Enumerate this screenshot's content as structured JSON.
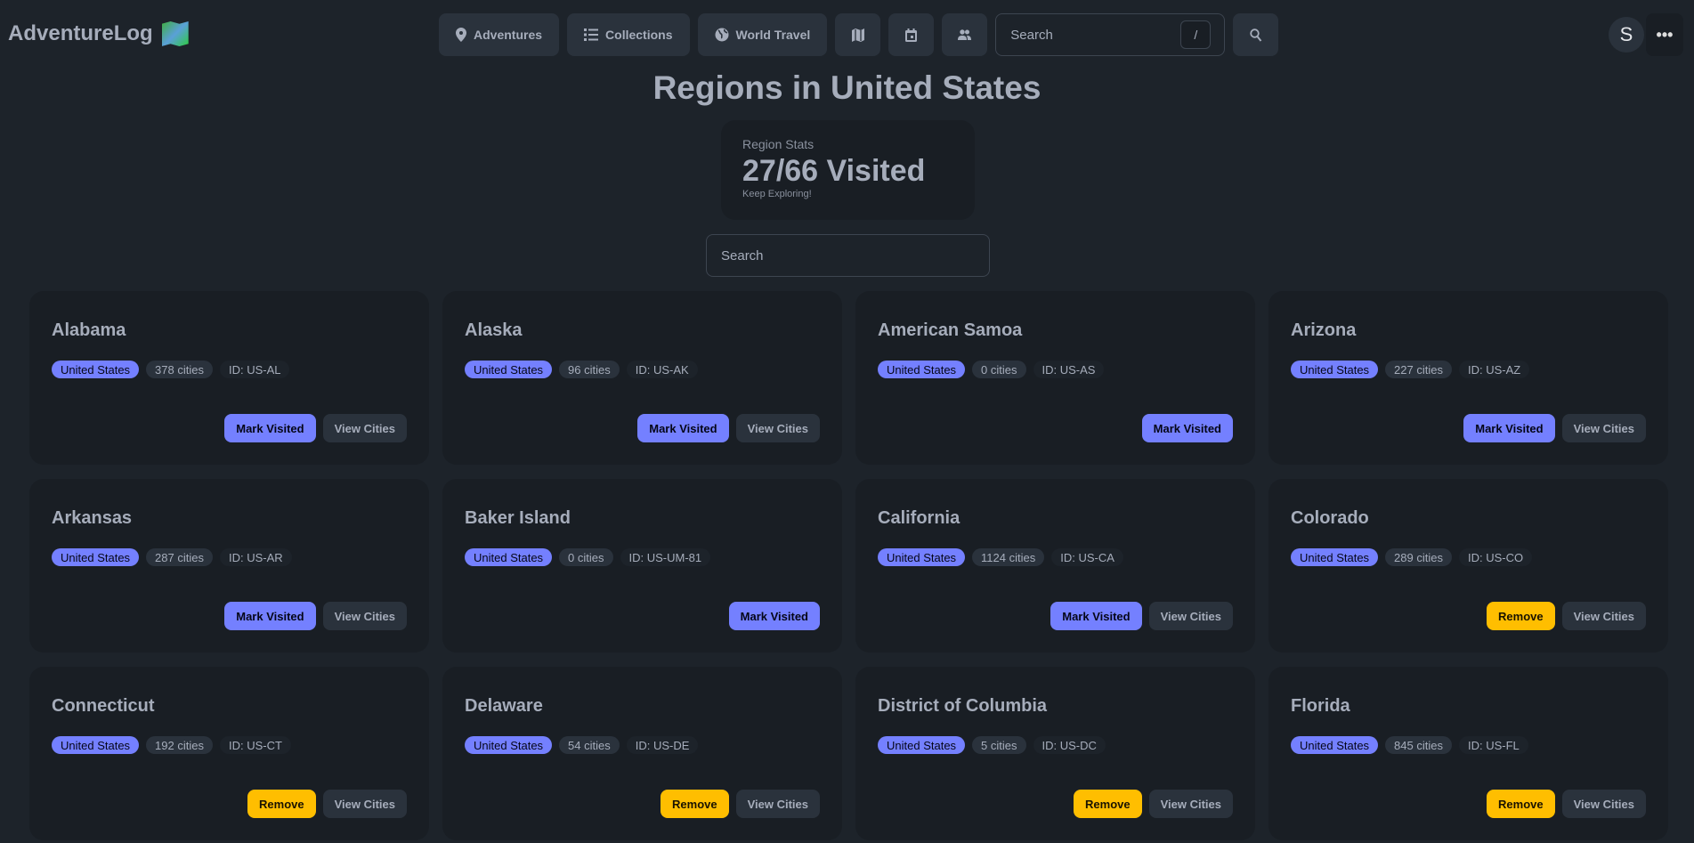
{
  "app": {
    "name": "AdventureLog"
  },
  "nav": {
    "adventures": "Adventures",
    "collections": "Collections",
    "world_travel": "World Travel",
    "search_placeholder": "Search",
    "search_shortcut": "/",
    "avatar_initial": "S",
    "more": "•••"
  },
  "page": {
    "title": "Regions in United States",
    "stats_title": "Region Stats",
    "stats_value": "27/66 Visited",
    "stats_desc": "Keep Exploring!",
    "search_placeholder": "Search"
  },
  "colors": {
    "primary": "#7480ff",
    "warning": "#ffbe00",
    "background": "#1d232a",
    "card": "#191e24"
  },
  "labels": {
    "mark_visited": "Mark Visited",
    "remove": "Remove",
    "view_cities": "View Cities"
  },
  "regions": [
    {
      "name": "Alabama",
      "country": "United States",
      "cities": "378 cities",
      "id": "ID: US-AL",
      "visited": false,
      "has_cities": true
    },
    {
      "name": "Alaska",
      "country": "United States",
      "cities": "96 cities",
      "id": "ID: US-AK",
      "visited": false,
      "has_cities": true
    },
    {
      "name": "American Samoa",
      "country": "United States",
      "cities": "0 cities",
      "id": "ID: US-AS",
      "visited": false,
      "has_cities": false
    },
    {
      "name": "Arizona",
      "country": "United States",
      "cities": "227 cities",
      "id": "ID: US-AZ",
      "visited": false,
      "has_cities": true
    },
    {
      "name": "Arkansas",
      "country": "United States",
      "cities": "287 cities",
      "id": "ID: US-AR",
      "visited": false,
      "has_cities": true
    },
    {
      "name": "Baker Island",
      "country": "United States",
      "cities": "0 cities",
      "id": "ID: US-UM-81",
      "visited": false,
      "has_cities": false
    },
    {
      "name": "California",
      "country": "United States",
      "cities": "1124 cities",
      "id": "ID: US-CA",
      "visited": false,
      "has_cities": true
    },
    {
      "name": "Colorado",
      "country": "United States",
      "cities": "289 cities",
      "id": "ID: US-CO",
      "visited": true,
      "has_cities": true
    },
    {
      "name": "Connecticut",
      "country": "United States",
      "cities": "192 cities",
      "id": "ID: US-CT",
      "visited": true,
      "has_cities": true
    },
    {
      "name": "Delaware",
      "country": "United States",
      "cities": "54 cities",
      "id": "ID: US-DE",
      "visited": true,
      "has_cities": true
    },
    {
      "name": "District of Columbia",
      "country": "United States",
      "cities": "5 cities",
      "id": "ID: US-DC",
      "visited": true,
      "has_cities": true
    },
    {
      "name": "Florida",
      "country": "United States",
      "cities": "845 cities",
      "id": "ID: US-FL",
      "visited": true,
      "has_cities": true
    }
  ]
}
